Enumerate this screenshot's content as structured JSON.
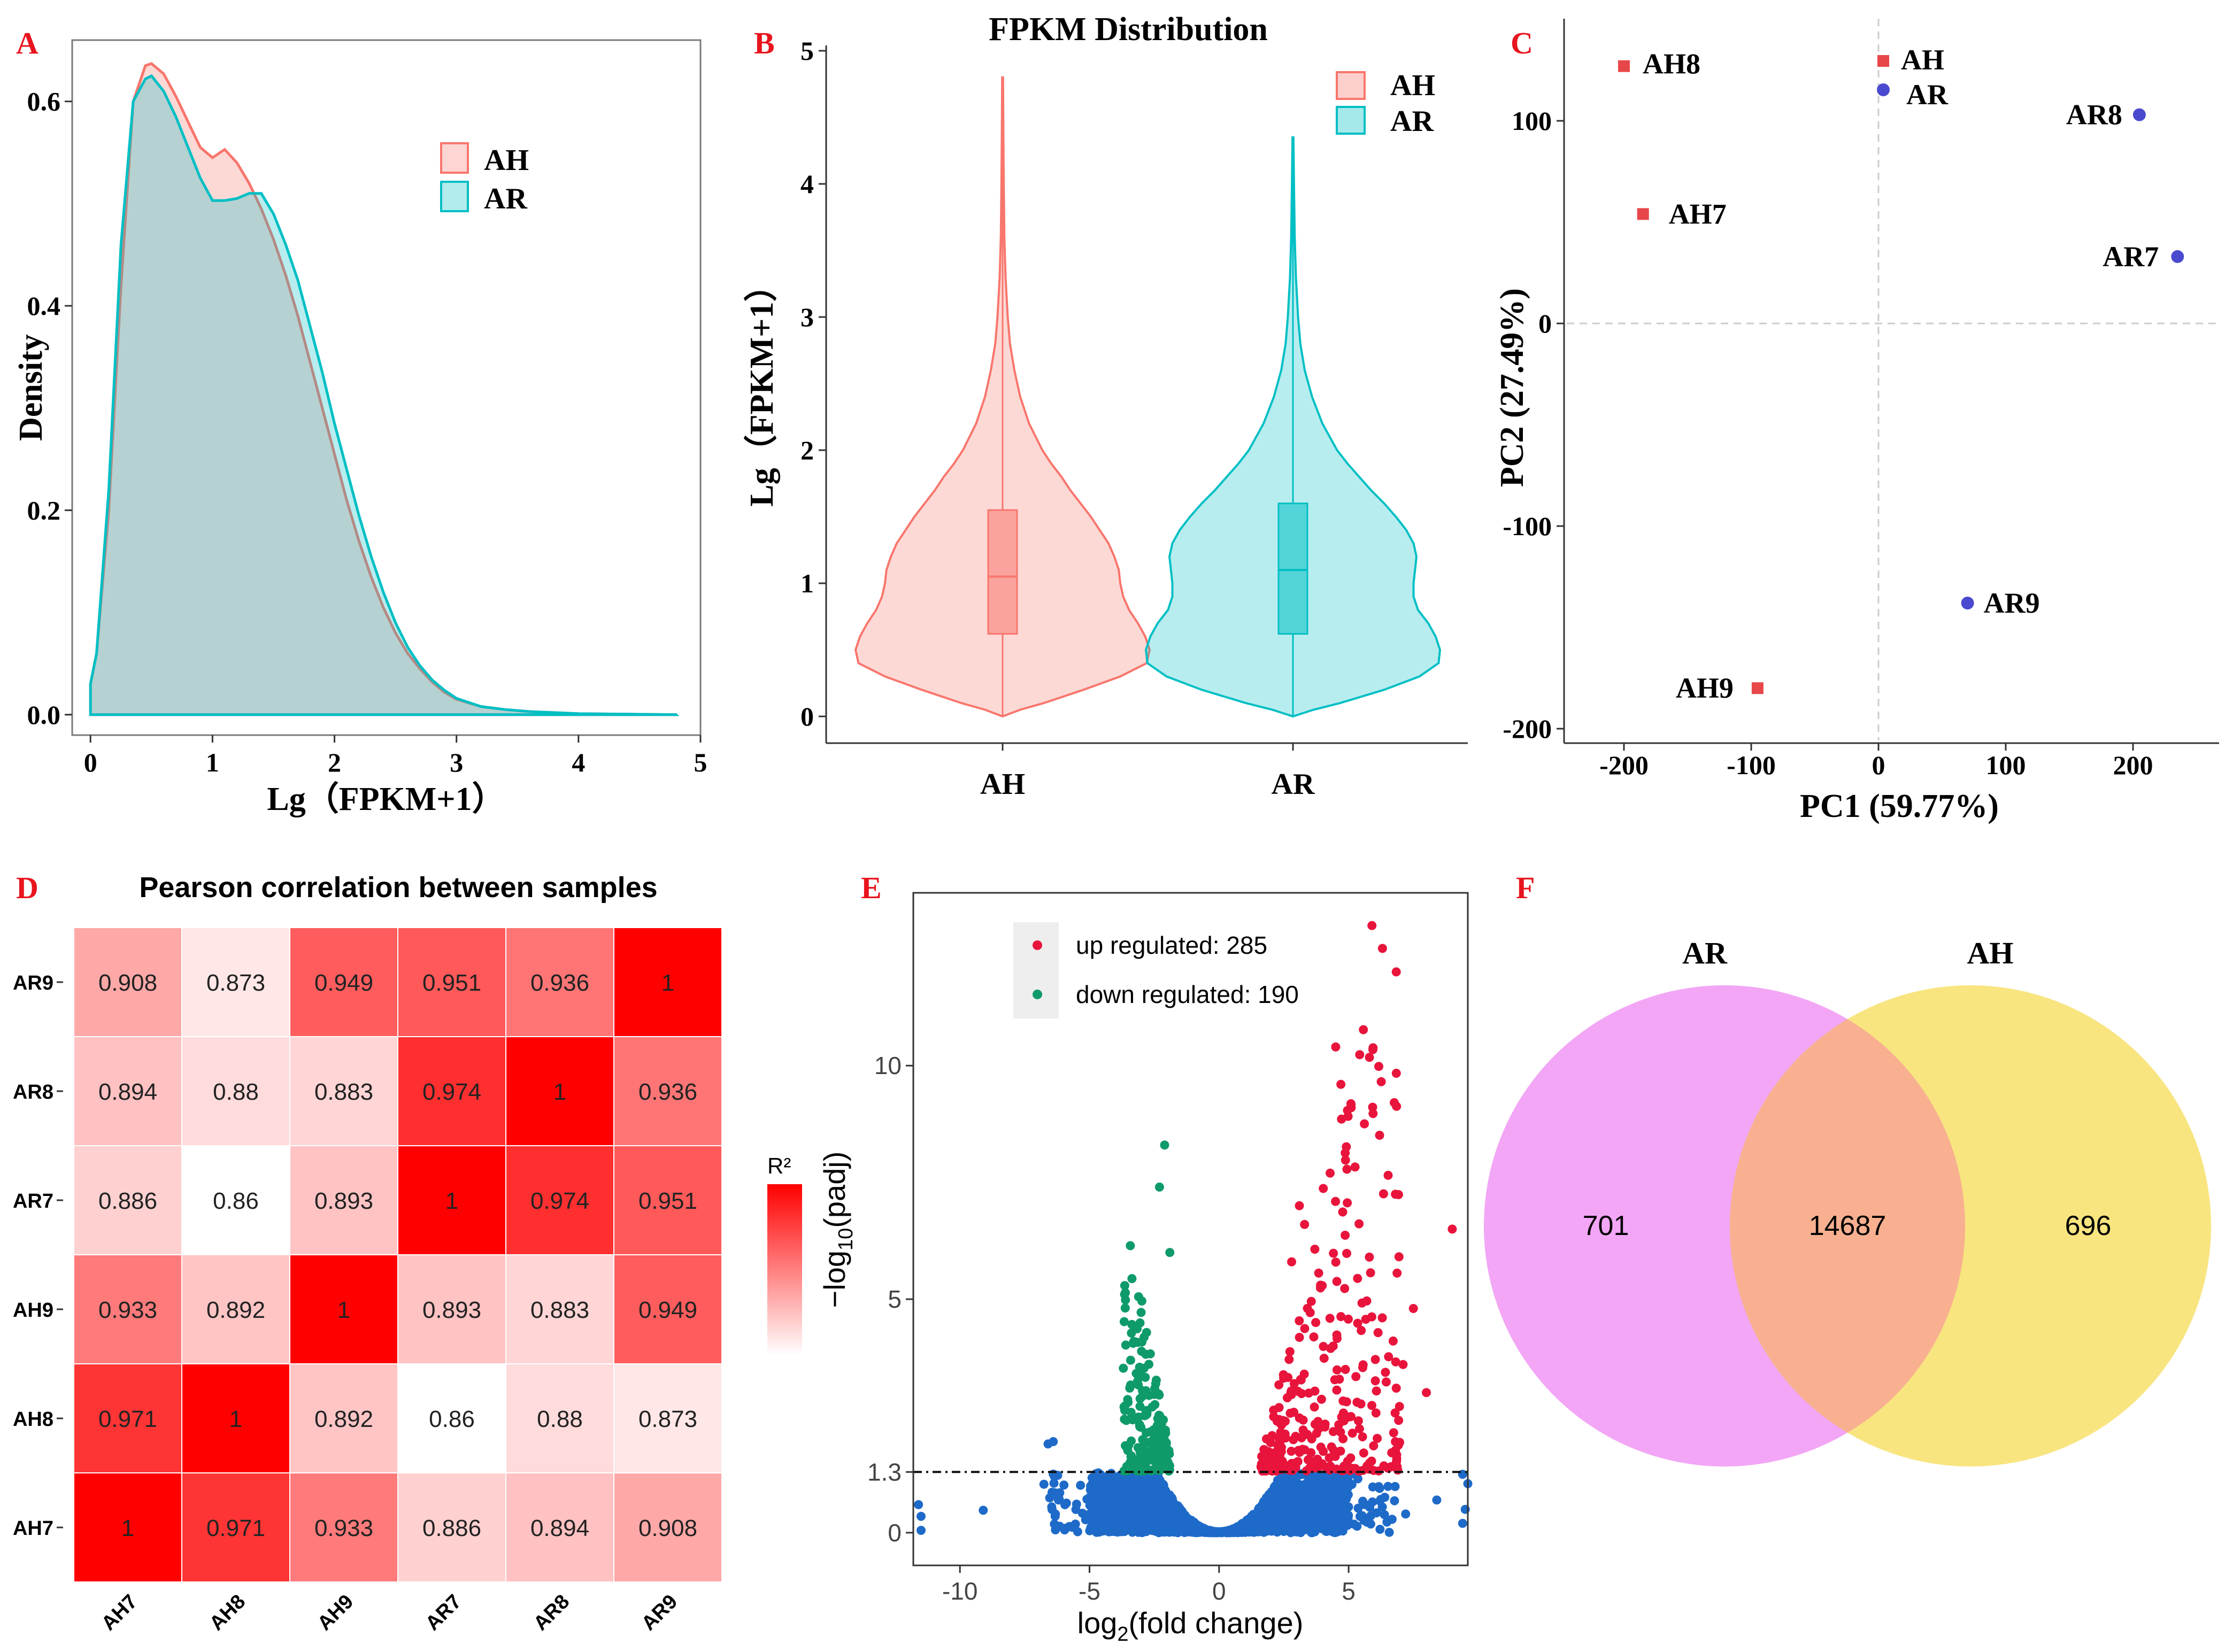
{
  "colors": {
    "panel_letter": "#e8141e",
    "ah_red": "#f8766d",
    "ar_cyan": "#00bfc4",
    "pca_ah": "#e8474a",
    "pca_ar": "#4a4ad0",
    "volcano_up": "#e8143c",
    "volcano_down": "#0f9a6a",
    "volcano_ns": "#1e6ac8",
    "venn_ar": "#ee88f2",
    "venn_ah": "#f7e06a",
    "venn_overlap": "#f8b090"
  },
  "panels": {
    "A": {
      "letter": "A"
    },
    "B": {
      "letter": "B"
    },
    "C": {
      "letter": "C"
    },
    "D": {
      "letter": "D"
    },
    "E": {
      "letter": "E"
    },
    "F": {
      "letter": "F"
    }
  },
  "chart_data": [
    {
      "id": "A",
      "type": "area",
      "title": "",
      "xlabel": "Lg（FPKM+1）",
      "ylabel": "Density",
      "xlim": [
        -0.15,
        5
      ],
      "ylim": [
        -0.02,
        0.66
      ],
      "xticks": [
        "0",
        "1",
        "2",
        "3",
        "4",
        "5"
      ],
      "yticks": [
        "0.0",
        "0.2",
        "0.4",
        "0.6"
      ],
      "legend": {
        "position": "top-right",
        "entries": [
          "AH",
          "AR"
        ]
      },
      "series": [
        {
          "name": "AH",
          "x": [
            0,
            0.05,
            0.15,
            0.25,
            0.35,
            0.45,
            0.5,
            0.6,
            0.7,
            0.8,
            0.9,
            1.0,
            1.1,
            1.2,
            1.3,
            1.4,
            1.5,
            1.6,
            1.7,
            1.8,
            1.9,
            2.0,
            2.1,
            2.2,
            2.3,
            2.4,
            2.5,
            2.6,
            2.7,
            2.8,
            2.9,
            3.0,
            3.2,
            3.4,
            3.6,
            3.8,
            4.0,
            4.4,
            4.8
          ],
          "y": [
            0.03,
            0.06,
            0.2,
            0.42,
            0.6,
            0.635,
            0.637,
            0.627,
            0.605,
            0.58,
            0.555,
            0.545,
            0.553,
            0.54,
            0.52,
            0.495,
            0.465,
            0.43,
            0.39,
            0.345,
            0.3,
            0.255,
            0.21,
            0.17,
            0.135,
            0.105,
            0.08,
            0.06,
            0.045,
            0.032,
            0.022,
            0.015,
            0.008,
            0.005,
            0.003,
            0.002,
            0.001,
            0.0005,
            0.0
          ]
        },
        {
          "name": "AR",
          "x": [
            0,
            0.05,
            0.15,
            0.25,
            0.35,
            0.45,
            0.5,
            0.6,
            0.7,
            0.8,
            0.9,
            1.0,
            1.1,
            1.2,
            1.3,
            1.4,
            1.5,
            1.6,
            1.7,
            1.8,
            1.9,
            2.0,
            2.1,
            2.2,
            2.3,
            2.4,
            2.5,
            2.6,
            2.7,
            2.8,
            2.9,
            3.0,
            3.2,
            3.4,
            3.6,
            3.8,
            4.0,
            4.4,
            4.8
          ],
          "y": [
            0.03,
            0.06,
            0.22,
            0.46,
            0.6,
            0.622,
            0.625,
            0.61,
            0.585,
            0.555,
            0.525,
            0.503,
            0.503,
            0.505,
            0.51,
            0.51,
            0.49,
            0.46,
            0.425,
            0.38,
            0.335,
            0.285,
            0.24,
            0.195,
            0.155,
            0.12,
            0.09,
            0.066,
            0.048,
            0.034,
            0.024,
            0.016,
            0.008,
            0.005,
            0.003,
            0.002,
            0.001,
            0.0005,
            0.0
          ]
        }
      ]
    },
    {
      "id": "B",
      "type": "violin",
      "title": "FPKM Distribution",
      "xlabel": "",
      "ylabel": "Lg（FPKM+1）",
      "ylim": [
        -0.1,
        5
      ],
      "yticks": [
        "0",
        "1",
        "2",
        "3",
        "4",
        "5"
      ],
      "categories": [
        "AH",
        "AR"
      ],
      "legend": {
        "position": "top-right",
        "entries": [
          "AH",
          "AR"
        ]
      },
      "series": [
        {
          "name": "AH",
          "box": {
            "q1": 0.62,
            "median": 1.05,
            "q3": 1.55,
            "whisker_low": 0.0,
            "whisker_high": 3.0
          },
          "max": 4.8,
          "profile_y": [
            0,
            0.05,
            0.1,
            0.2,
            0.3,
            0.4,
            0.5,
            0.6,
            0.7,
            0.8,
            0.9,
            1.0,
            1.1,
            1.2,
            1.3,
            1.4,
            1.5,
            1.6,
            1.7,
            1.8,
            1.9,
            2.0,
            2.2,
            2.4,
            2.6,
            2.8,
            3.0,
            3.3,
            3.6,
            4.0,
            4.4,
            4.8
          ],
          "profile_w": [
            0.0,
            0.12,
            0.28,
            0.55,
            0.8,
            0.98,
            1.0,
            0.97,
            0.92,
            0.86,
            0.82,
            0.8,
            0.79,
            0.76,
            0.72,
            0.66,
            0.6,
            0.53,
            0.46,
            0.4,
            0.33,
            0.27,
            0.18,
            0.12,
            0.08,
            0.05,
            0.035,
            0.02,
            0.012,
            0.008,
            0.005,
            0.003
          ]
        },
        {
          "name": "AR",
          "box": {
            "q1": 0.62,
            "median": 1.1,
            "q3": 1.6,
            "whisker_low": 0.0,
            "whisker_high": 3.0
          },
          "max": 4.35,
          "profile_y": [
            0,
            0.05,
            0.1,
            0.2,
            0.3,
            0.4,
            0.5,
            0.6,
            0.7,
            0.8,
            0.9,
            1.0,
            1.1,
            1.2,
            1.3,
            1.4,
            1.5,
            1.6,
            1.7,
            1.8,
            1.9,
            2.0,
            2.2,
            2.4,
            2.6,
            2.8,
            3.0,
            3.3,
            3.6,
            4.0,
            4.35
          ],
          "profile_w": [
            0.0,
            0.14,
            0.32,
            0.62,
            0.86,
            0.99,
            1.0,
            0.97,
            0.92,
            0.85,
            0.82,
            0.82,
            0.83,
            0.84,
            0.82,
            0.77,
            0.7,
            0.62,
            0.53,
            0.45,
            0.37,
            0.3,
            0.2,
            0.13,
            0.08,
            0.05,
            0.035,
            0.02,
            0.012,
            0.007,
            0.003
          ]
        }
      ]
    },
    {
      "id": "C",
      "type": "scatter",
      "title": "",
      "xlabel": "PC1 (59.77%)",
      "ylabel": "PC2 (27.49%)",
      "xlim": [
        -230,
        250
      ],
      "ylim": [
        -205,
        150
      ],
      "xticks": [
        "-200",
        "-100",
        "0",
        "100",
        "200"
      ],
      "yticks": [
        "-200",
        "-100",
        "0",
        "100"
      ],
      "legend": {
        "position": "top-center",
        "entries": [
          "AH",
          "AR"
        ]
      },
      "points": [
        {
          "label": "AH8",
          "group": "AH",
          "x": -200,
          "y": 127
        },
        {
          "label": "AH7",
          "group": "AH",
          "x": -185,
          "y": 54
        },
        {
          "label": "AH9",
          "group": "AH",
          "x": -95,
          "y": -180
        },
        {
          "label": "AR8",
          "group": "AR",
          "x": 205,
          "y": 103
        },
        {
          "label": "AR7",
          "group": "AR",
          "x": 235,
          "y": 33
        },
        {
          "label": "AR9",
          "group": "AR",
          "x": 70,
          "y": -138
        }
      ]
    },
    {
      "id": "D",
      "type": "heatmap",
      "title": "Pearson correlation between samples",
      "xlabels": [
        "AH7",
        "AH8",
        "AH9",
        "AR7",
        "AR8",
        "AR9"
      ],
      "ylabels": [
        "AR9",
        "AR8",
        "AR7",
        "AH9",
        "AH8",
        "AH7"
      ],
      "colorbar_label": "R²",
      "colorbar_range": [
        0.86,
        1
      ],
      "values": [
        [
          "0.908",
          "0.873",
          "0.949",
          "0.951",
          "0.936",
          "1"
        ],
        [
          "0.894",
          "0.88",
          "0.883",
          "0.974",
          "1",
          "0.936"
        ],
        [
          "0.886",
          "0.86",
          "0.893",
          "1",
          "0.974",
          "0.951"
        ],
        [
          "0.933",
          "0.892",
          "1",
          "0.893",
          "0.883",
          "0.949"
        ],
        [
          "0.971",
          "1",
          "0.892",
          "0.86",
          "0.88",
          "0.873"
        ],
        [
          "1",
          "0.971",
          "0.933",
          "0.886",
          "0.894",
          "0.908"
        ]
      ]
    },
    {
      "id": "E",
      "type": "scatter",
      "title": "",
      "xlabel": "log2(fold change)",
      "ylabel": "−log10(padj)",
      "xlim": [
        -11.8,
        9.6
      ],
      "ylim": [
        -0.7,
        13.7
      ],
      "xticks": [
        "-10",
        "-5",
        "0",
        "5"
      ],
      "yticks": [
        "0",
        "1.3",
        "5",
        "10"
      ],
      "threshold": 1.3,
      "legend": {
        "position": "top-center",
        "entries": [
          "up regulated: 285",
          "down regulated: 190"
        ]
      },
      "up_count": 285,
      "down_count": 190
    },
    {
      "id": "F",
      "type": "venn",
      "sets": [
        {
          "name": "AR",
          "only": "701"
        },
        {
          "name": "AH",
          "only": "696"
        }
      ],
      "overlap": "14687"
    }
  ]
}
